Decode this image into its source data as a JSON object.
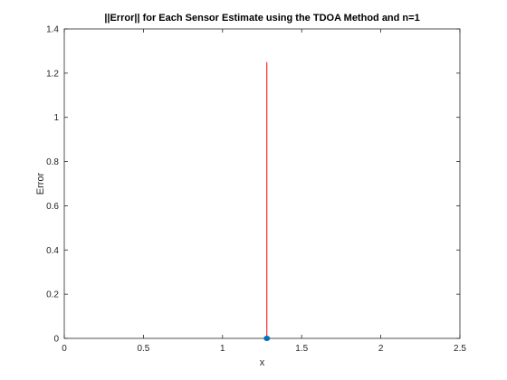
{
  "chart_data": {
    "type": "scatter",
    "title": "||Error|| for Each Sensor Estimate using the  TDOA  Method and n=1",
    "xlabel": "x",
    "ylabel": "Error",
    "xlim": [
      0,
      2.5
    ],
    "ylim": [
      0,
      1.4
    ],
    "xticks": [
      0,
      0.5,
      1,
      1.5,
      2,
      2.5
    ],
    "xtick_labels": [
      "0",
      "0.5",
      "1",
      "1.5",
      "2",
      "2.5"
    ],
    "yticks": [
      0,
      0.2,
      0.4,
      0.6,
      0.8,
      1,
      1.2,
      1.4
    ],
    "ytick_labels": [
      "0",
      "0.2",
      "0.4",
      "0.6",
      "0.8",
      "1",
      "1.2",
      "1.4"
    ],
    "grid": false,
    "points": [
      {
        "x": 1.28,
        "y": 0
      }
    ],
    "stems": [
      {
        "x": 1.28,
        "y0": 0,
        "y1": 1.25
      }
    ],
    "point_color": "#0072BD",
    "stem_color": "#FF0000"
  }
}
